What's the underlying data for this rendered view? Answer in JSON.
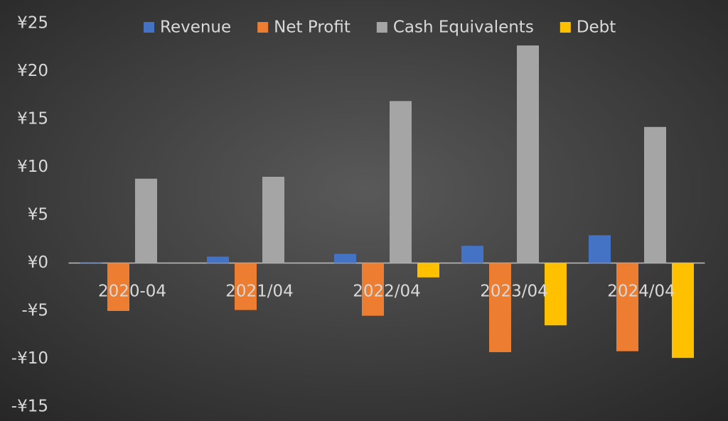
{
  "chart_data": {
    "type": "bar",
    "categories": [
      "2020-04",
      "2021/04",
      "2022/04",
      "2023/04",
      "2024/04"
    ],
    "series": [
      {
        "name": "Revenue",
        "color": "#4472c4",
        "values": [
          0.05,
          0.67,
          0.96,
          1.8,
          2.9
        ]
      },
      {
        "name": "Net Profit",
        "color": "#ed7d31",
        "values": [
          -5.0,
          -4.9,
          -5.5,
          -9.3,
          -9.2
        ]
      },
      {
        "name": "Cash Equivalents",
        "color": "#a5a5a5",
        "values": [
          8.8,
          9.0,
          16.9,
          22.7,
          14.2
        ]
      },
      {
        "name": "Debt",
        "color": "#ffc000",
        "values": [
          0,
          0,
          -1.5,
          -6.5,
          -9.9
        ]
      }
    ],
    "ylim": [
      -15,
      25
    ],
    "yticks": [
      {
        "value": -15,
        "label": "-¥15"
      },
      {
        "value": -10,
        "label": "-¥10"
      },
      {
        "value": -5,
        "label": "-¥5"
      },
      {
        "value": 0,
        "label": "¥0"
      },
      {
        "value": 5,
        "label": "¥5"
      },
      {
        "value": 10,
        "label": "¥10"
      },
      {
        "value": 15,
        "label": "¥15"
      },
      {
        "value": 20,
        "label": "¥20"
      },
      {
        "value": 25,
        "label": "¥25"
      }
    ],
    "legend": "top",
    "grid": false
  }
}
